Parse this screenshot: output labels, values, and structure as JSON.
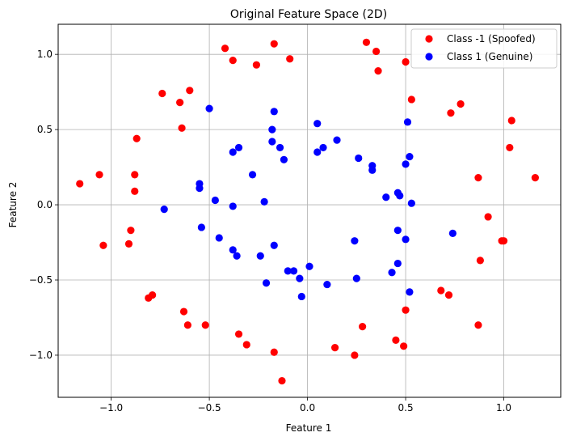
{
  "chart_data": {
    "type": "scatter",
    "title": "Original Feature Space (2D)",
    "xlabel": "Feature 1",
    "ylabel": "Feature 2",
    "xlim": [
      -1.27,
      1.29
    ],
    "ylim": [
      -1.28,
      1.2
    ],
    "xticks": [
      -1.0,
      -0.5,
      0.0,
      0.5,
      1.0
    ],
    "xtick_labels": [
      "−1.0",
      "−0.5",
      "0.0",
      "0.5",
      "1.0"
    ],
    "yticks": [
      -1.0,
      -0.5,
      0.0,
      0.5,
      1.0
    ],
    "ytick_labels": [
      "−1.0",
      "−0.5",
      "0.0",
      "0.5",
      "1.0"
    ],
    "grid": true,
    "legend_position": "top-right",
    "series": [
      {
        "name": "Class -1 (Spoofed)",
        "color": "#ff0000",
        "points": [
          [
            -1.16,
            0.14
          ],
          [
            -1.06,
            0.2
          ],
          [
            -1.04,
            -0.27
          ],
          [
            -0.91,
            -0.26
          ],
          [
            -0.9,
            -0.17
          ],
          [
            -0.88,
            0.2
          ],
          [
            -0.88,
            0.09
          ],
          [
            -0.87,
            0.44
          ],
          [
            -0.81,
            -0.62
          ],
          [
            -0.79,
            -0.6
          ],
          [
            -0.74,
            0.74
          ],
          [
            -0.65,
            0.68
          ],
          [
            -0.64,
            0.51
          ],
          [
            -0.63,
            -0.71
          ],
          [
            -0.61,
            -0.8
          ],
          [
            -0.6,
            0.76
          ],
          [
            -0.52,
            -0.8
          ],
          [
            -0.42,
            1.04
          ],
          [
            -0.38,
            0.96
          ],
          [
            -0.35,
            -0.86
          ],
          [
            -0.31,
            -0.93
          ],
          [
            -0.26,
            0.93
          ],
          [
            -0.17,
            1.07
          ],
          [
            -0.17,
            -0.98
          ],
          [
            -0.13,
            -1.17
          ],
          [
            -0.09,
            0.97
          ],
          [
            0.14,
            -0.95
          ],
          [
            0.24,
            -1.0
          ],
          [
            0.28,
            -0.81
          ],
          [
            0.3,
            1.08
          ],
          [
            0.35,
            1.02
          ],
          [
            0.36,
            0.89
          ],
          [
            0.45,
            -0.9
          ],
          [
            0.49,
            -0.94
          ],
          [
            0.5,
            0.95
          ],
          [
            0.5,
            -0.7
          ],
          [
            0.53,
            0.7
          ],
          [
            0.68,
            -0.57
          ],
          [
            0.72,
            -0.6
          ],
          [
            0.73,
            0.61
          ],
          [
            0.78,
            0.67
          ],
          [
            0.87,
            0.18
          ],
          [
            0.87,
            -0.8
          ],
          [
            0.88,
            -0.37
          ],
          [
            0.92,
            -0.08
          ],
          [
            0.99,
            -0.24
          ],
          [
            1.0,
            -0.24
          ],
          [
            1.03,
            0.38
          ],
          [
            1.04,
            0.56
          ],
          [
            1.16,
            0.18
          ]
        ]
      },
      {
        "name": "Class 1 (Genuine)",
        "color": "#0000ff",
        "points": [
          [
            -0.73,
            -0.03
          ],
          [
            -0.55,
            0.14
          ],
          [
            -0.55,
            0.11
          ],
          [
            -0.54,
            -0.15
          ],
          [
            -0.5,
            0.64
          ],
          [
            -0.47,
            0.03
          ],
          [
            -0.45,
            -0.22
          ],
          [
            -0.38,
            0.35
          ],
          [
            -0.38,
            -0.01
          ],
          [
            -0.38,
            -0.3
          ],
          [
            -0.36,
            -0.34
          ],
          [
            -0.35,
            0.38
          ],
          [
            -0.28,
            0.2
          ],
          [
            -0.24,
            -0.34
          ],
          [
            -0.22,
            0.02
          ],
          [
            -0.21,
            -0.52
          ],
          [
            -0.18,
            0.5
          ],
          [
            -0.18,
            0.42
          ],
          [
            -0.17,
            0.62
          ],
          [
            -0.17,
            -0.27
          ],
          [
            -0.14,
            0.38
          ],
          [
            -0.12,
            0.3
          ],
          [
            -0.1,
            -0.44
          ],
          [
            -0.07,
            -0.44
          ],
          [
            -0.04,
            -0.49
          ],
          [
            -0.03,
            -0.61
          ],
          [
            0.01,
            -0.41
          ],
          [
            0.05,
            0.35
          ],
          [
            0.05,
            0.54
          ],
          [
            0.08,
            0.38
          ],
          [
            0.1,
            -0.53
          ],
          [
            0.15,
            0.43
          ],
          [
            0.24,
            -0.24
          ],
          [
            0.25,
            -0.49
          ],
          [
            0.26,
            0.31
          ],
          [
            0.33,
            0.26
          ],
          [
            0.33,
            0.23
          ],
          [
            0.4,
            0.05
          ],
          [
            0.43,
            -0.45
          ],
          [
            0.46,
            0.08
          ],
          [
            0.46,
            -0.17
          ],
          [
            0.46,
            -0.39
          ],
          [
            0.47,
            0.06
          ],
          [
            0.5,
            0.27
          ],
          [
            0.5,
            -0.23
          ],
          [
            0.51,
            0.55
          ],
          [
            0.52,
            0.32
          ],
          [
            0.52,
            -0.58
          ],
          [
            0.53,
            0.01
          ],
          [
            0.74,
            -0.19
          ]
        ]
      }
    ]
  }
}
